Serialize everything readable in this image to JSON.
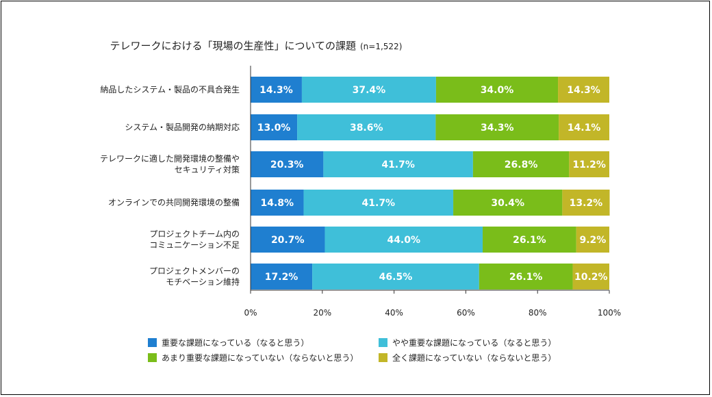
{
  "chart_data": {
    "type": "bar",
    "orientation": "horizontal-stacked-100",
    "title": "テレワークにおける「現場の生産性」についての課題",
    "subtitle": "(n=1,522)",
    "categories": [
      [
        "納品したシステム・製品の不具合発生"
      ],
      [
        "システム・製品開発の納期対応"
      ],
      [
        "テレワークに適した開発環境の整備や",
        "セキュリティ対策"
      ],
      [
        "オンラインでの共同開発環境の整備"
      ],
      [
        "プロジェクトチーム内の",
        "コミュニケーション不足"
      ],
      [
        "プロジェクトメンバーの",
        "モチベーション維持"
      ]
    ],
    "series": [
      {
        "name": "重要な課題になっている（なると思う）",
        "color": "#1f7fd0",
        "values": [
          14.3,
          13.0,
          20.3,
          14.8,
          20.7,
          17.2
        ]
      },
      {
        "name": "やや重要な課題になっている（なると思う）",
        "color": "#3fbfd9",
        "values": [
          37.4,
          38.6,
          41.7,
          41.7,
          44.0,
          46.5
        ]
      },
      {
        "name": "あまり重要な課題になっていない（ならないと思う）",
        "color": "#7abd1a",
        "values": [
          34.0,
          34.3,
          26.8,
          30.4,
          26.1,
          26.1
        ]
      },
      {
        "name": "全く課題になっていない（ならないと思う）",
        "color": "#c2b628",
        "values": [
          14.3,
          14.1,
          11.2,
          13.2,
          9.2,
          10.2
        ]
      }
    ],
    "xlim": [
      0,
      100
    ],
    "xticks": [
      "0%",
      "20%",
      "40%",
      "60%",
      "80%",
      "100%"
    ],
    "grid": false,
    "legend_position": "bottom"
  }
}
